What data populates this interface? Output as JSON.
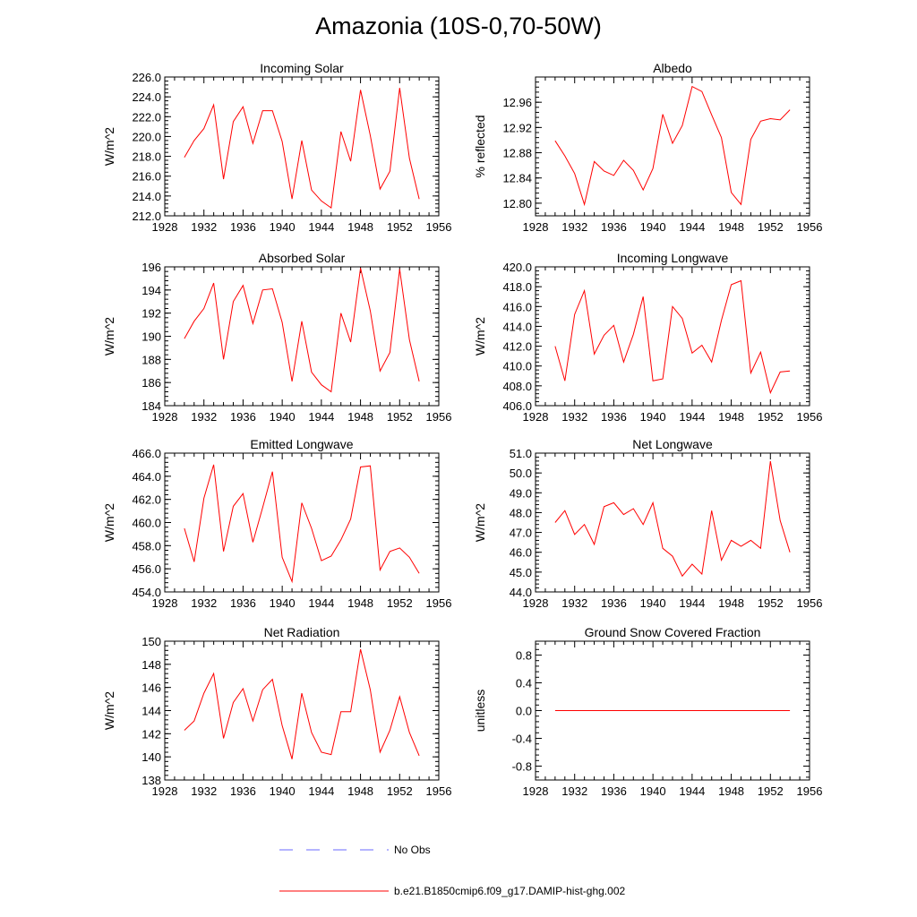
{
  "title": "Amazonia (10S-0,70-50W)",
  "x": [
    1930,
    1931,
    1932,
    1933,
    1934,
    1935,
    1936,
    1937,
    1938,
    1939,
    1940,
    1941,
    1942,
    1943,
    1944,
    1945,
    1946,
    1947,
    1948,
    1949,
    1950,
    1951,
    1952,
    1953,
    1954
  ],
  "legend": {
    "items": [
      {
        "label": "No Obs",
        "color": "#6a6aff",
        "style": "dashed"
      },
      {
        "label": "b.e21.B1850cmip6.f09_g17.DAMIP-hist-ghg.002",
        "color": "#ff0000",
        "style": "solid"
      }
    ]
  },
  "chart_data": [
    {
      "type": "line",
      "title": "Incoming Solar",
      "ylabel": "W/m^2",
      "xlim": [
        1928,
        1956
      ],
      "ylim": [
        212,
        226
      ],
      "xticks": [
        "1928",
        "1932",
        "1936",
        "1940",
        "1944",
        "1948",
        "1952",
        "1956"
      ],
      "yticks": [
        "212.0",
        "214.0",
        "216.0",
        "218.0",
        "220.0",
        "222.0",
        "224.0",
        "226.0"
      ],
      "series": [
        {
          "color": "#ff0000",
          "values": [
            217.9,
            219.6,
            220.8,
            223.2,
            215.7,
            221.5,
            223.0,
            219.3,
            222.6,
            222.6,
            219.5,
            213.7,
            219.6,
            214.6,
            213.5,
            212.8,
            220.5,
            217.5,
            224.7,
            220.1,
            214.7,
            216.5,
            224.9,
            217.8,
            213.7
          ]
        }
      ]
    },
    {
      "type": "line",
      "title": "Albedo",
      "ylabel": "% reflected",
      "xlim": [
        1928,
        1956
      ],
      "ylim": [
        12.78,
        13.0
      ],
      "xticks": [
        "1928",
        "1932",
        "1936",
        "1940",
        "1944",
        "1948",
        "1952",
        "1956"
      ],
      "yticks": [
        "12.80",
        "12.84",
        "12.88",
        "12.92",
        "12.96"
      ],
      "series": [
        {
          "color": "#ff0000",
          "values": [
            12.899,
            12.875,
            12.847,
            12.798,
            12.866,
            12.851,
            12.844,
            12.868,
            12.852,
            12.821,
            12.855,
            12.941,
            12.895,
            12.923,
            12.985,
            12.977,
            12.94,
            12.904,
            12.817,
            12.798,
            12.901,
            12.93,
            12.934,
            12.932,
            12.948
          ]
        }
      ]
    },
    {
      "type": "line",
      "title": "Absorbed Solar",
      "ylabel": "W/m^2",
      "xlim": [
        1928,
        1956
      ],
      "ylim": [
        184,
        196
      ],
      "xticks": [
        "1928",
        "1932",
        "1936",
        "1940",
        "1944",
        "1948",
        "1952",
        "1956"
      ],
      "yticks": [
        "184",
        "186",
        "188",
        "190",
        "192",
        "194",
        "196"
      ],
      "series": [
        {
          "color": "#ff0000",
          "values": [
            189.8,
            191.3,
            192.4,
            194.6,
            188.0,
            193.0,
            194.4,
            191.1,
            194.0,
            194.1,
            191.2,
            186.1,
            191.3,
            186.9,
            185.8,
            185.2,
            192.0,
            189.5,
            195.9,
            192.2,
            187.0,
            188.6,
            195.8,
            189.7,
            186.1
          ]
        }
      ]
    },
    {
      "type": "line",
      "title": "Incoming Longwave",
      "ylabel": "W/m^2",
      "xlim": [
        1928,
        1956
      ],
      "ylim": [
        406,
        420
      ],
      "xticks": [
        "1928",
        "1932",
        "1936",
        "1940",
        "1944",
        "1948",
        "1952",
        "1956"
      ],
      "yticks": [
        "406.0",
        "408.0",
        "410.0",
        "412.0",
        "414.0",
        "416.0",
        "418.0",
        "420.0"
      ],
      "series": [
        {
          "color": "#ff0000",
          "values": [
            412.0,
            408.5,
            415.2,
            417.6,
            411.2,
            413.1,
            414.1,
            410.4,
            413.2,
            417.0,
            408.5,
            408.7,
            416.0,
            414.8,
            411.3,
            412.1,
            410.4,
            414.6,
            418.2,
            418.6,
            409.3,
            411.4,
            407.3,
            409.4,
            409.5
          ]
        }
      ]
    },
    {
      "type": "line",
      "title": "Emitted Longwave",
      "ylabel": "W/m^2",
      "xlim": [
        1928,
        1956
      ],
      "ylim": [
        454,
        466
      ],
      "xticks": [
        "1928",
        "1932",
        "1936",
        "1940",
        "1944",
        "1948",
        "1952",
        "1956"
      ],
      "yticks": [
        "454.0",
        "456.0",
        "458.0",
        "460.0",
        "462.0",
        "464.0",
        "466.0"
      ],
      "series": [
        {
          "color": "#ff0000",
          "values": [
            459.5,
            456.6,
            462.1,
            465.0,
            457.5,
            461.4,
            462.5,
            458.3,
            461.3,
            464.4,
            457.0,
            454.9,
            461.7,
            459.5,
            456.7,
            457.1,
            458.5,
            460.3,
            464.8,
            464.9,
            455.9,
            457.5,
            457.8,
            457.0,
            455.6
          ]
        }
      ]
    },
    {
      "type": "line",
      "title": "Net Longwave",
      "ylabel": "W/m^2",
      "xlim": [
        1928,
        1956
      ],
      "ylim": [
        44,
        51
      ],
      "xticks": [
        "1928",
        "1932",
        "1936",
        "1940",
        "1944",
        "1948",
        "1952",
        "1956"
      ],
      "yticks": [
        "44.0",
        "45.0",
        "46.0",
        "47.0",
        "48.0",
        "49.0",
        "50.0",
        "51.0"
      ],
      "series": [
        {
          "color": "#ff0000",
          "values": [
            47.5,
            48.1,
            46.9,
            47.4,
            46.4,
            48.3,
            48.5,
            47.9,
            48.2,
            47.4,
            48.5,
            46.2,
            45.8,
            44.8,
            45.4,
            44.9,
            48.1,
            45.6,
            46.6,
            46.3,
            46.6,
            46.2,
            50.6,
            47.6,
            46.0
          ]
        }
      ]
    },
    {
      "type": "line",
      "title": "Net Radiation",
      "ylabel": "W/m^2",
      "xlim": [
        1928,
        1956
      ],
      "ylim": [
        138,
        150
      ],
      "xticks": [
        "1928",
        "1932",
        "1936",
        "1940",
        "1944",
        "1948",
        "1952",
        "1956"
      ],
      "yticks": [
        "138",
        "140",
        "142",
        "144",
        "146",
        "148",
        "150"
      ],
      "series": [
        {
          "color": "#ff0000",
          "values": [
            142.3,
            143.1,
            145.5,
            147.2,
            141.6,
            144.7,
            145.9,
            143.1,
            145.8,
            146.7,
            142.7,
            139.8,
            145.5,
            142.1,
            140.4,
            140.2,
            143.9,
            143.9,
            149.3,
            145.8,
            140.4,
            142.3,
            145.2,
            142.1,
            140.1
          ]
        }
      ]
    },
    {
      "type": "line",
      "title": "Ground Snow Covered Fraction",
      "ylabel": "unitless",
      "xlim": [
        1928,
        1956
      ],
      "ylim": [
        -1.0,
        1.0
      ],
      "xticks": [
        "1928",
        "1932",
        "1936",
        "1940",
        "1944",
        "1948",
        "1952",
        "1956"
      ],
      "yticks": [
        "-0.8",
        "-0.4",
        "0.0",
        "0.4",
        "0.8"
      ],
      "series": [
        {
          "color": "#ff0000",
          "values": [
            0,
            0,
            0,
            0,
            0,
            0,
            0,
            0,
            0,
            0,
            0,
            0,
            0,
            0,
            0,
            0,
            0,
            0,
            0,
            0,
            0,
            0,
            0,
            0,
            0
          ]
        }
      ]
    }
  ]
}
